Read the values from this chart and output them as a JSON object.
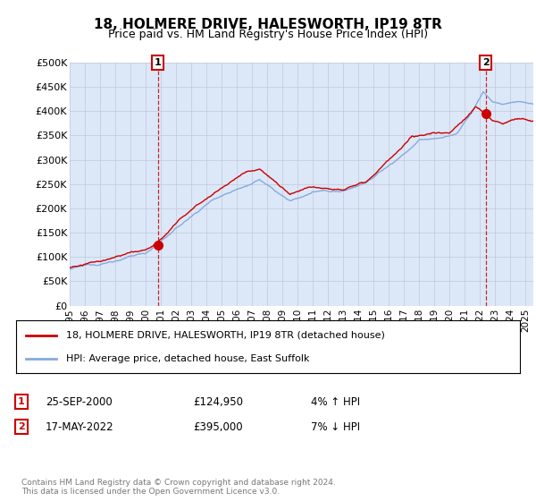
{
  "title": "18, HOLMERE DRIVE, HALESWORTH, IP19 8TR",
  "subtitle": "Price paid vs. HM Land Registry's House Price Index (HPI)",
  "ylabel_ticks": [
    "£0",
    "£50K",
    "£100K",
    "£150K",
    "£200K",
    "£250K",
    "£300K",
    "£350K",
    "£400K",
    "£450K",
    "£500K"
  ],
  "ytick_values": [
    0,
    50000,
    100000,
    150000,
    200000,
    250000,
    300000,
    350000,
    400000,
    450000,
    500000
  ],
  "ylim": [
    0,
    500000
  ],
  "xlim_start": 1995.0,
  "xlim_end": 2025.5,
  "sale1_x": 2000.8,
  "sale1_y": 124950,
  "sale2_x": 2022.37,
  "sale2_y": 395000,
  "line_color_red": "#cc0000",
  "line_color_blue": "#88aadd",
  "marker_color": "#cc0000",
  "grid_color": "#c0c8d8",
  "plot_bg_color": "#dce8f8",
  "background_color": "#ffffff",
  "legend_label_red": "18, HOLMERE DRIVE, HALESWORTH, IP19 8TR (detached house)",
  "legend_label_blue": "HPI: Average price, detached house, East Suffolk",
  "annotation1_label": "1",
  "annotation1_date": "25-SEP-2000",
  "annotation1_price": "£124,950",
  "annotation1_hpi": "4% ↑ HPI",
  "annotation2_label": "2",
  "annotation2_date": "17-MAY-2022",
  "annotation2_price": "£395,000",
  "annotation2_hpi": "7% ↓ HPI",
  "footer": "Contains HM Land Registry data © Crown copyright and database right 2024.\nThis data is licensed under the Open Government Licence v3.0.",
  "xtick_years": [
    "1995",
    "1996",
    "1997",
    "1998",
    "1999",
    "2000",
    "2001",
    "2002",
    "2003",
    "2004",
    "2005",
    "2006",
    "2007",
    "2008",
    "2009",
    "2010",
    "2011",
    "2012",
    "2013",
    "2014",
    "2015",
    "2016",
    "2017",
    "2018",
    "2019",
    "2020",
    "2021",
    "2022",
    "2023",
    "2024",
    "2025"
  ]
}
